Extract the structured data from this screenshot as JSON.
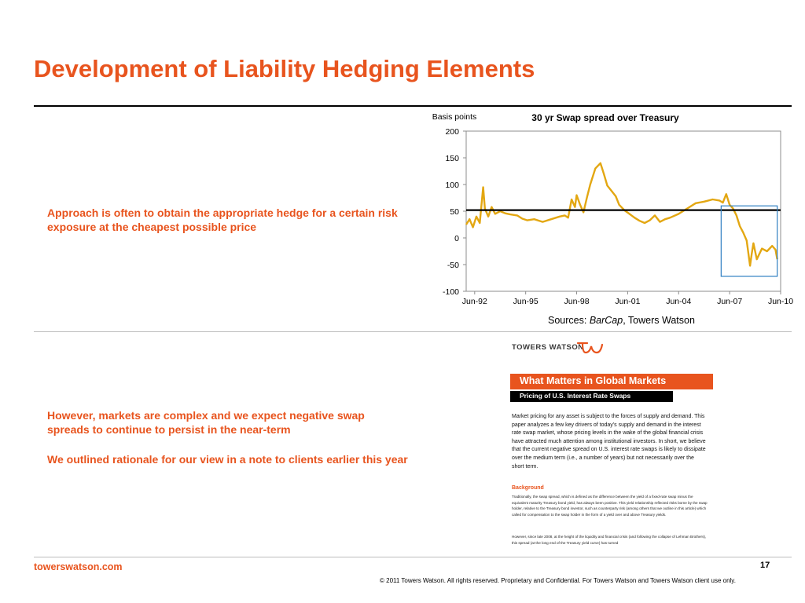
{
  "slide": {
    "title": "Development of Liability Hedging Elements",
    "point_1": "Approach is often to obtain the appropriate hedge for a certain risk exposure at the cheapest possible price",
    "point_2": "However, markets are complex and we expect negative swap spreads to continue to persist in the near-term",
    "point_3": "We outlined rationale for our view in a note to clients earlier this year",
    "sources_prefix": "Sources: ",
    "sources_italic": "BarCap",
    "sources_suffix": ", Towers Watson"
  },
  "document_thumbnail": {
    "logo_text": "TOWERS WATSON",
    "banner": "What Matters in Global Markets",
    "subbanner": "Pricing of U.S. Interest Rate Swaps",
    "body": "Market pricing for any asset is subject to the forces of supply and demand. This paper analyzes a few key drivers of today's supply and demand in the interest rate swap market, whose pricing levels in the wake of the global financial crisis have attracted much attention among institutional investors. In short, we believe that the current negative spread on U.S. interest rate swaps is likely to dissipate over the medium term (i.e., a number of years) but not necessarily over the short term.",
    "heading": "Background",
    "small_1": "Traditionally, the swap spread, which is defined as the difference between the yield of a fixed-rate swap minus the equivalent maturity Treasury bond yield, has always been positive. This yield relationship reflected risks borne by the swap holder, relative to the Treasury bond investor, such as counterparty risk (among others that we outline in this article) which called for compensation to the swap holder in the form of a yield over and above Treasury yields.",
    "small_2": "However, since late 2008, at the height of the liquidity and financial crisis (and following the collapse of Lehman Brothers), this spread (at the long end of the Treasury yield curve) has turned"
  },
  "footer": {
    "url": "towerswatson.com",
    "page_number": "17",
    "copyright": "© 2011 Towers Watson. All rights reserved. Proprietary and Confidential. For Towers Watson and Towers Watson client use only."
  },
  "colors": {
    "accent": "#e8541e",
    "series": "#e3a712",
    "reference_line": "#000000",
    "highlight_box": "#2f7fc1"
  },
  "chart_data": {
    "type": "line",
    "title": "30 yr Swap spread over Treasury",
    "ylabel": "Basis points",
    "xlabel": "",
    "ylim": [
      -100,
      200
    ],
    "yticks": [
      200,
      150,
      100,
      50,
      0,
      -50,
      -100
    ],
    "xticks": [
      "Jun-92",
      "Jun-95",
      "Jun-98",
      "Jun-01",
      "Jun-04",
      "Jun-07",
      "Jun-10"
    ],
    "xlim": [
      1992.0,
      2010.5
    ],
    "grid": false,
    "reference_line": {
      "y": 52
    },
    "highlight_region": {
      "x": [
        2007.0,
        2010.3
      ],
      "y": [
        -72,
        60
      ]
    },
    "series": [
      {
        "x": [
          1992.0,
          1992.2,
          1992.4,
          1992.6,
          1992.8,
          1993.0,
          1993.1,
          1993.3,
          1993.5,
          1993.7,
          1994.0,
          1994.3,
          1994.6,
          1995.0,
          1995.3,
          1995.6,
          1996.0,
          1996.5,
          1997.0,
          1997.5,
          1997.8,
          1998.0,
          1998.2,
          1998.4,
          1998.5,
          1998.7,
          1998.9,
          1999.1,
          1999.3,
          1999.6,
          1999.9,
          2000.1,
          2000.3,
          2000.5,
          2000.8,
          2001.0,
          2001.3,
          2001.6,
          2001.9,
          2002.2,
          2002.5,
          2002.8,
          2003.1,
          2003.4,
          2003.7,
          2004.0,
          2004.5,
          2005.0,
          2005.5,
          2006.0,
          2006.5,
          2006.9,
          2007.1,
          2007.3,
          2007.5,
          2007.7,
          2007.9,
          2008.1,
          2008.3,
          2008.5,
          2008.7,
          2008.8,
          2008.9,
          2009.1,
          2009.4,
          2009.7,
          2010.0,
          2010.2,
          2010.3
        ],
        "y": [
          25,
          35,
          20,
          40,
          28,
          95,
          55,
          40,
          58,
          45,
          50,
          46,
          44,
          42,
          36,
          33,
          35,
          30,
          35,
          40,
          42,
          38,
          72,
          58,
          80,
          62,
          48,
          75,
          100,
          130,
          140,
          120,
          98,
          90,
          78,
          62,
          52,
          45,
          38,
          32,
          28,
          33,
          42,
          30,
          35,
          38,
          45,
          55,
          65,
          68,
          72,
          70,
          66,
          82,
          62,
          55,
          42,
          22,
          10,
          -5,
          -52,
          -30,
          -10,
          -40,
          -20,
          -25,
          -15,
          -22,
          -40
        ]
      }
    ]
  }
}
